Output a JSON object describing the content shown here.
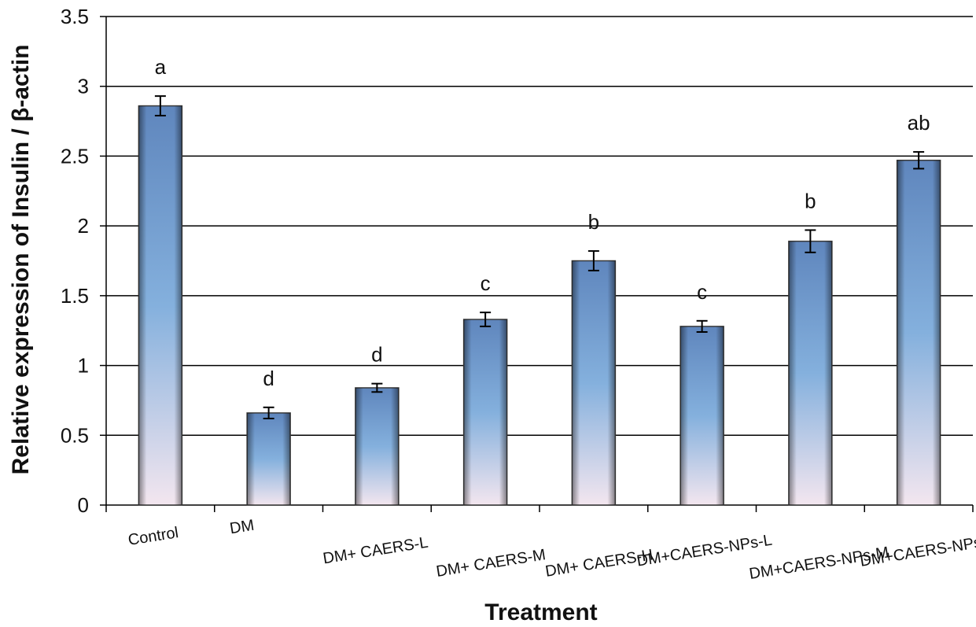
{
  "chart_data": {
    "type": "bar",
    "title": "",
    "xlabel": "Treatment",
    "ylabel": "Relative expression of  Insulin  / β-actin",
    "ylim": [
      0,
      3.5
    ],
    "yticks": [
      "0",
      "0.5",
      "1",
      "1.5",
      "2",
      "2.5",
      "3",
      "3.5"
    ],
    "grid": true,
    "categories": [
      "Control",
      "DM",
      "DM+ CAERS-L",
      "DM+ CAERS-M",
      "DM+ CAERS-H",
      "DM+CAERS-NPs-L",
      "DM+CAERS-NPs-M",
      "DM+CAERS-NPs-H"
    ],
    "values": [
      2.86,
      0.66,
      0.84,
      1.33,
      1.75,
      1.28,
      1.89,
      2.47
    ],
    "errors": [
      0.07,
      0.04,
      0.03,
      0.05,
      0.07,
      0.04,
      0.08,
      0.06
    ],
    "significance": [
      "a",
      "d",
      "d",
      "c",
      "b",
      "c",
      "b",
      "ab"
    ]
  }
}
